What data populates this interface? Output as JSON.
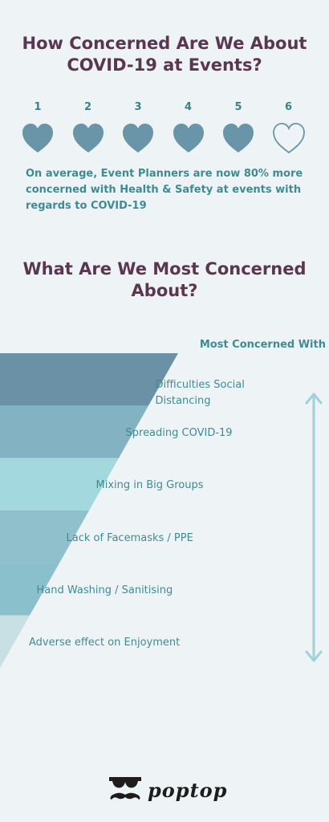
{
  "header": {
    "title": "How Concerned Are We About COVID-19 at Events?"
  },
  "rating": {
    "items": [
      {
        "number": "1",
        "filled": true
      },
      {
        "number": "2",
        "filled": true
      },
      {
        "number": "3",
        "filled": true
      },
      {
        "number": "4",
        "filled": true
      },
      {
        "number": "5",
        "filled": true
      },
      {
        "number": "6",
        "filled": false
      }
    ],
    "color": "#6a94a7"
  },
  "summary": "On average, Event Planners are now 80% more concerned with Health & Safety at events with regards to COVID-19",
  "section2": {
    "title": "What Are We Most Concerned About?"
  },
  "funnel": {
    "side_label": "Most Concerned With",
    "levels": [
      {
        "label": "Difficulties Social Distancing",
        "color": "#6a91a5"
      },
      {
        "label": "Spreading COVID-19",
        "color": "#83b2c2"
      },
      {
        "label": "Mixing in Big Groups",
        "color": "#a4d8df"
      },
      {
        "label": "Lack of Facemasks / PPE",
        "color": "#8fc0cb"
      },
      {
        "label": "Hand Washing / Sanitising",
        "color": "#8abfcc"
      },
      {
        "label": "Adverse effect on Enjoyment",
        "color": "#c8dfe3"
      }
    ],
    "arrow_color": "#9fd1d9"
  },
  "logo": {
    "text": "poptop"
  }
}
